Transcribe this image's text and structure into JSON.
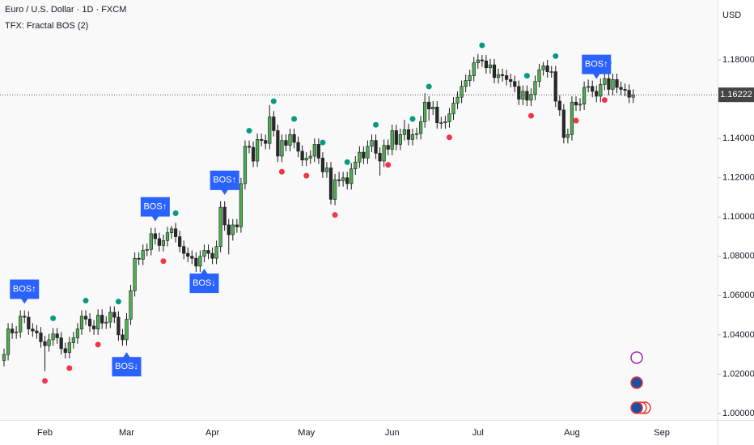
{
  "chart_data": {
    "type": "candlestick",
    "title": "Euro / U.S. Dollar · 1D · FXCM",
    "indicator": "TFX: Fractal BOS (2)",
    "currency": "USD",
    "up_color": "#4caf50",
    "down_color": "#2a2a2a",
    "fractal_high_color": "#089981",
    "fractal_low_color": "#f23645",
    "bos_color": "#2962ff",
    "ylim": [
      0.9967,
      1.2105
    ],
    "yticks": [
      {
        "value": 1.0,
        "label": "1.00000"
      },
      {
        "value": 1.02,
        "label": "1.02000"
      },
      {
        "value": 1.04,
        "label": "1.04000"
      },
      {
        "value": 1.06,
        "label": "1.06000"
      },
      {
        "value": 1.08,
        "label": "1.08000"
      },
      {
        "value": 1.1,
        "label": "1.10000"
      },
      {
        "value": 1.12,
        "label": "1.12000"
      },
      {
        "value": 1.14,
        "label": "1.14000"
      },
      {
        "value": 1.16,
        "label": "1.16000"
      },
      {
        "value": 1.18,
        "label": "1.18000"
      }
    ],
    "xticks": [
      {
        "index": 10,
        "label": "Feb"
      },
      {
        "index": 30,
        "label": "Mar"
      },
      {
        "index": 51,
        "label": "Apr"
      },
      {
        "index": 74,
        "label": "May"
      },
      {
        "index": 95,
        "label": "Jun"
      },
      {
        "index": 116,
        "label": "Jul"
      },
      {
        "index": 139,
        "label": "Aug"
      },
      {
        "index": 161,
        "label": "Sep"
      }
    ],
    "last_price": {
      "value": 1.16222,
      "label": "1.16222"
    },
    "candles": [
      [
        1.027,
        1.033,
        1.024,
        1.03
      ],
      [
        1.03,
        1.046,
        1.027,
        1.043
      ],
      [
        1.043,
        1.046,
        1.038,
        1.041
      ],
      [
        1.041,
        1.0445,
        1.038,
        1.0415
      ],
      [
        1.0415,
        1.0525,
        1.0385,
        1.0495
      ],
      [
        1.0495,
        1.0525,
        1.046,
        1.049
      ],
      [
        1.049,
        1.052,
        1.04,
        1.043
      ],
      [
        1.043,
        1.046,
        1.039,
        1.042
      ],
      [
        1.042,
        1.045,
        1.038,
        1.041
      ],
      [
        1.041,
        1.044,
        1.0335,
        1.0365
      ],
      [
        1.0365,
        1.0395,
        1.0215,
        1.0345
      ],
      [
        1.0345,
        1.0405,
        1.0315,
        1.0375
      ],
      [
        1.0375,
        1.0435,
        1.0345,
        1.0405
      ],
      [
        1.0405,
        1.0435,
        1.0355,
        1.0385
      ],
      [
        1.0385,
        1.0415,
        1.03,
        1.033
      ],
      [
        1.033,
        1.036,
        1.028,
        1.031
      ],
      [
        1.031,
        1.039,
        1.028,
        1.036
      ],
      [
        1.036,
        1.0415,
        1.033,
        1.0385
      ],
      [
        1.0385,
        1.046,
        1.0355,
        1.043
      ],
      [
        1.043,
        1.0525,
        1.04,
        1.0495
      ],
      [
        1.0495,
        1.0525,
        1.045,
        1.048
      ],
      [
        1.048,
        1.051,
        1.0415,
        1.0445
      ],
      [
        1.0445,
        1.0475,
        1.04,
        1.043
      ],
      [
        1.043,
        1.053,
        1.04,
        1.05
      ],
      [
        1.05,
        1.053,
        1.043,
        1.046
      ],
      [
        1.046,
        1.0495,
        1.043,
        1.0465
      ],
      [
        1.0465,
        1.0545,
        1.0435,
        1.0515
      ],
      [
        1.0515,
        1.0545,
        1.046,
        1.049
      ],
      [
        1.049,
        1.052,
        1.037,
        1.04
      ],
      [
        1.04,
        1.043,
        1.0345,
        1.0375
      ],
      [
        1.0375,
        1.051,
        1.0345,
        1.048
      ],
      [
        1.048,
        1.0655,
        1.045,
        1.0625
      ],
      [
        1.0625,
        1.082,
        1.0595,
        1.079
      ],
      [
        1.079,
        1.082,
        1.0755,
        1.0785
      ],
      [
        1.0785,
        1.086,
        1.0755,
        1.083
      ],
      [
        1.083,
        1.0865,
        1.08,
        1.0835
      ],
      [
        1.0835,
        1.0945,
        1.0805,
        1.0915
      ],
      [
        1.0915,
        1.0945,
        1.086,
        1.089
      ],
      [
        1.089,
        1.092,
        1.0825,
        1.0855
      ],
      [
        1.0855,
        1.091,
        1.0825,
        1.088
      ],
      [
        1.088,
        1.095,
        1.085,
        1.092
      ],
      [
        1.092,
        1.0955,
        1.089,
        1.094
      ],
      [
        1.094,
        1.097,
        1.087,
        1.09
      ],
      [
        1.09,
        1.093,
        1.082,
        1.085
      ],
      [
        1.085,
        1.088,
        1.0785,
        1.0815
      ],
      [
        1.0815,
        1.0845,
        1.077,
        1.08
      ],
      [
        1.08,
        1.083,
        1.076,
        1.079
      ],
      [
        1.079,
        1.082,
        1.072,
        1.075
      ],
      [
        1.075,
        1.083,
        1.072,
        1.08
      ],
      [
        1.08,
        1.086,
        1.077,
        1.083
      ],
      [
        1.083,
        1.086,
        1.0785,
        1.0815
      ],
      [
        1.0815,
        1.0845,
        1.076,
        1.079
      ],
      [
        1.079,
        1.088,
        1.076,
        1.085
      ],
      [
        1.085,
        1.108,
        1.082,
        1.105
      ],
      [
        1.105,
        1.108,
        1.093,
        1.096
      ],
      [
        1.096,
        1.099,
        1.081,
        1.091
      ],
      [
        1.091,
        1.099,
        1.088,
        1.096
      ],
      [
        1.096,
        1.099,
        1.092,
        1.095
      ],
      [
        1.095,
        1.12,
        1.092,
        1.117
      ],
      [
        1.117,
        1.139,
        1.114,
        1.136
      ],
      [
        1.136,
        1.139,
        1.1325,
        1.1355
      ],
      [
        1.1355,
        1.1385,
        1.1255,
        1.1285
      ],
      [
        1.1285,
        1.1425,
        1.1255,
        1.1395
      ],
      [
        1.1395,
        1.1425,
        1.136,
        1.139
      ],
      [
        1.139,
        1.142,
        1.1345,
        1.1375
      ],
      [
        1.1375,
        1.157,
        1.1345,
        1.151
      ],
      [
        1.151,
        1.154,
        1.141,
        1.144
      ],
      [
        1.144,
        1.147,
        1.128,
        1.131
      ],
      [
        1.131,
        1.142,
        1.128,
        1.139
      ],
      [
        1.139,
        1.142,
        1.1335,
        1.1365
      ],
      [
        1.1365,
        1.145,
        1.1335,
        1.142
      ],
      [
        1.142,
        1.145,
        1.135,
        1.138
      ],
      [
        1.138,
        1.141,
        1.1305,
        1.1335
      ],
      [
        1.1335,
        1.1365,
        1.126,
        1.129
      ],
      [
        1.129,
        1.133,
        1.126,
        1.13
      ],
      [
        1.13,
        1.134,
        1.127,
        1.131
      ],
      [
        1.131,
        1.14,
        1.128,
        1.137
      ],
      [
        1.137,
        1.14,
        1.127,
        1.13
      ],
      [
        1.13,
        1.133,
        1.12,
        1.123
      ],
      [
        1.123,
        1.128,
        1.12,
        1.125
      ],
      [
        1.125,
        1.128,
        1.1065,
        1.109
      ],
      [
        1.109,
        1.122,
        1.106,
        1.119
      ],
      [
        1.119,
        1.123,
        1.1155,
        1.1185
      ],
      [
        1.1185,
        1.123,
        1.1155,
        1.12
      ],
      [
        1.12,
        1.123,
        1.114,
        1.117
      ],
      [
        1.117,
        1.1275,
        1.114,
        1.1245
      ],
      [
        1.1245,
        1.131,
        1.1215,
        1.128
      ],
      [
        1.128,
        1.136,
        1.125,
        1.133
      ],
      [
        1.133,
        1.136,
        1.127,
        1.13
      ],
      [
        1.13,
        1.139,
        1.127,
        1.136
      ],
      [
        1.136,
        1.142,
        1.133,
        1.139
      ],
      [
        1.139,
        1.142,
        1.1295,
        1.1325
      ],
      [
        1.1325,
        1.1355,
        1.121,
        1.1285
      ],
      [
        1.1285,
        1.1395,
        1.1255,
        1.1365
      ],
      [
        1.1365,
        1.1395,
        1.1315,
        1.1345
      ],
      [
        1.1345,
        1.147,
        1.1315,
        1.144
      ],
      [
        1.144,
        1.147,
        1.134,
        1.137
      ],
      [
        1.137,
        1.145,
        1.134,
        1.142
      ],
      [
        1.142,
        1.1495,
        1.139,
        1.1445
      ],
      [
        1.1445,
        1.1475,
        1.1365,
        1.1395
      ],
      [
        1.1395,
        1.145,
        1.1365,
        1.142
      ],
      [
        1.142,
        1.1455,
        1.1395,
        1.1425
      ],
      [
        1.1425,
        1.1515,
        1.1395,
        1.1485
      ],
      [
        1.1485,
        1.163,
        1.1455,
        1.1585
      ],
      [
        1.1585,
        1.1615,
        1.149,
        1.155
      ],
      [
        1.155,
        1.159,
        1.152,
        1.156
      ],
      [
        1.156,
        1.159,
        1.145,
        1.148
      ],
      [
        1.148,
        1.151,
        1.145,
        1.148
      ],
      [
        1.148,
        1.1515,
        1.145,
        1.1485
      ],
      [
        1.1485,
        1.1555,
        1.1455,
        1.1525
      ],
      [
        1.1525,
        1.161,
        1.1495,
        1.158
      ],
      [
        1.158,
        1.164,
        1.155,
        1.161
      ],
      [
        1.161,
        1.1695,
        1.158,
        1.1665
      ],
      [
        1.1665,
        1.1725,
        1.1635,
        1.1695
      ],
      [
        1.1695,
        1.175,
        1.1665,
        1.172
      ],
      [
        1.172,
        1.1815,
        1.169,
        1.1785
      ],
      [
        1.1785,
        1.183,
        1.1755,
        1.18
      ],
      [
        1.18,
        1.1825,
        1.1765,
        1.1795
      ],
      [
        1.1795,
        1.1825,
        1.173,
        1.176
      ],
      [
        1.176,
        1.1805,
        1.173,
        1.1775
      ],
      [
        1.1775,
        1.1805,
        1.168,
        1.171
      ],
      [
        1.171,
        1.1755,
        1.168,
        1.1725
      ],
      [
        1.1725,
        1.1755,
        1.169,
        1.172
      ],
      [
        1.172,
        1.175,
        1.167,
        1.17
      ],
      [
        1.17,
        1.173,
        1.166,
        1.169
      ],
      [
        1.169,
        1.172,
        1.1635,
        1.1665
      ],
      [
        1.1665,
        1.1695,
        1.157,
        1.16
      ],
      [
        1.16,
        1.167,
        1.157,
        1.164
      ],
      [
        1.164,
        1.167,
        1.1565,
        1.1595
      ],
      [
        1.1595,
        1.1655,
        1.1565,
        1.1625
      ],
      [
        1.1625,
        1.172,
        1.1595,
        1.169
      ],
      [
        1.169,
        1.178,
        1.166,
        1.175
      ],
      [
        1.175,
        1.179,
        1.172,
        1.177
      ],
      [
        1.177,
        1.18,
        1.171,
        1.174
      ],
      [
        1.174,
        1.177,
        1.171,
        1.174
      ],
      [
        1.174,
        1.177,
        1.156,
        1.159
      ],
      [
        1.159,
        1.162,
        1.1515,
        1.1545
      ],
      [
        1.1545,
        1.1575,
        1.1375,
        1.1405
      ],
      [
        1.1405,
        1.145,
        1.1375,
        1.142
      ],
      [
        1.142,
        1.1615,
        1.139,
        1.1585
      ],
      [
        1.1585,
        1.1615,
        1.154,
        1.157
      ],
      [
        1.157,
        1.1605,
        1.154,
        1.1575
      ],
      [
        1.1575,
        1.169,
        1.1545,
        1.166
      ],
      [
        1.166,
        1.17,
        1.1635,
        1.1665
      ],
      [
        1.1665,
        1.1695,
        1.161,
        1.164
      ],
      [
        1.164,
        1.167,
        1.1585,
        1.1615
      ],
      [
        1.1615,
        1.1705,
        1.1585,
        1.1675
      ],
      [
        1.1675,
        1.173,
        1.1645,
        1.1705
      ],
      [
        1.1705,
        1.1735,
        1.162,
        1.165
      ],
      [
        1.165,
        1.173,
        1.162,
        1.17
      ],
      [
        1.17,
        1.173,
        1.163,
        1.166
      ],
      [
        1.166,
        1.169,
        1.162,
        1.165
      ],
      [
        1.165,
        1.168,
        1.1615,
        1.1645
      ],
      [
        1.1645,
        1.1675,
        1.158,
        1.161
      ],
      [
        1.161,
        1.165,
        1.158,
        1.1622
      ]
    ],
    "fractal_highs": [
      12,
      20,
      28,
      42,
      60,
      66,
      71,
      78,
      84,
      91,
      100,
      104,
      117,
      128,
      135,
      148
    ],
    "fractal_lows": [
      10,
      16,
      23,
      39,
      68,
      74,
      81,
      94,
      109,
      129,
      140,
      147
    ],
    "bos": [
      {
        "index": 5,
        "label": "BOS↑",
        "direction": "up"
      },
      {
        "index": 30,
        "label": "BOS↓",
        "direction": "down"
      },
      {
        "index": 37,
        "label": "BOS↑",
        "direction": "up"
      },
      {
        "index": 49,
        "label": "BOS↓",
        "direction": "down"
      },
      {
        "index": 54,
        "label": "BOS↑",
        "direction": "up"
      },
      {
        "index": 145,
        "label": "BOS↑",
        "direction": "up"
      }
    ]
  }
}
